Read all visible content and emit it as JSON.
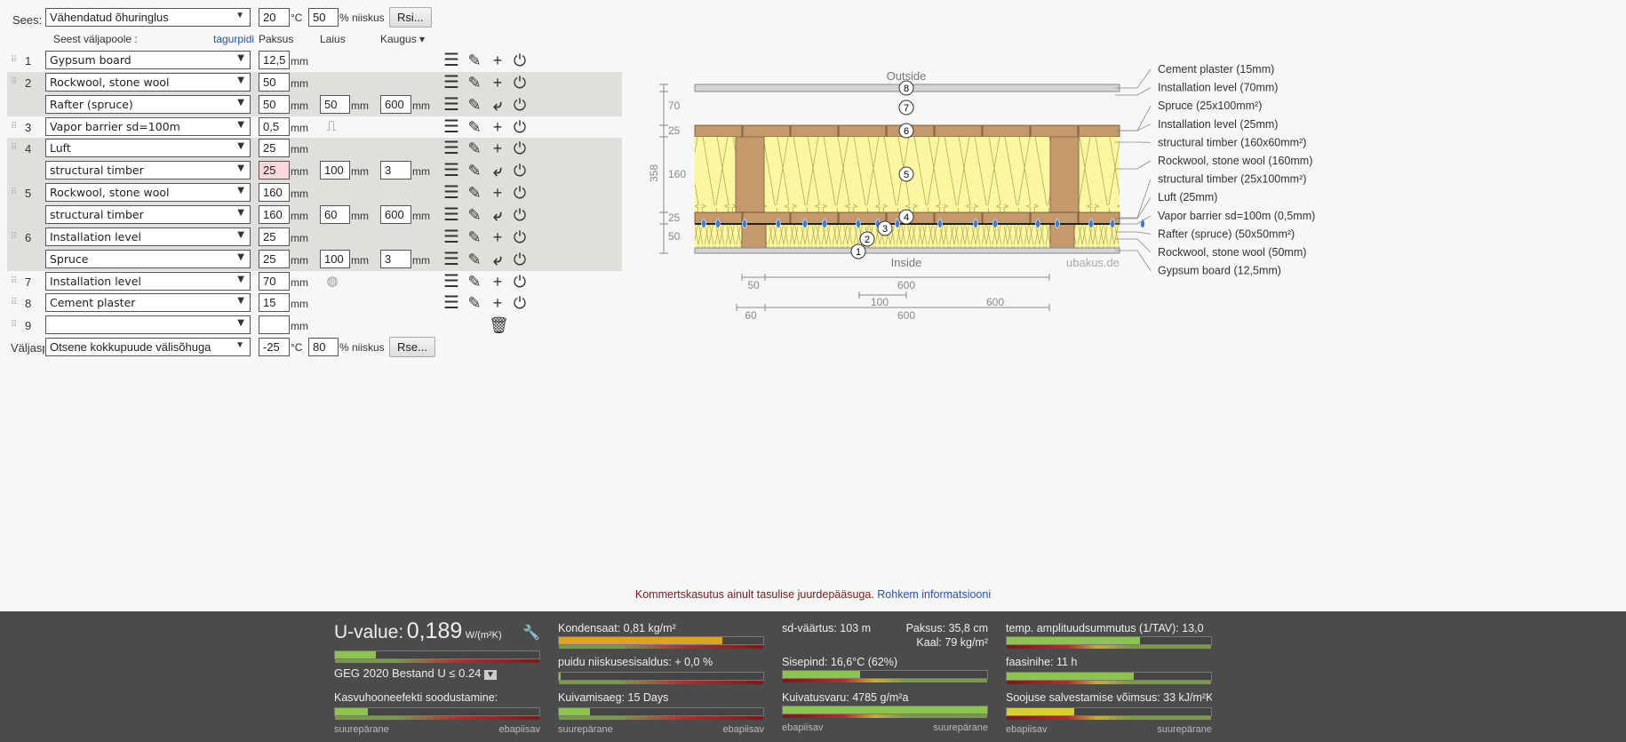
{
  "inside": {
    "label": "Sees:",
    "climate": "Vähendatud õhuringlus",
    "temp": "20",
    "temp_unit": "°C",
    "humidity": "50",
    "humidity_unit": "% niiskus",
    "rsi_button": "Rsi..."
  },
  "columns": {
    "order": "Seest väljapoole :",
    "reverse": "tagurpidi",
    "thickness": "Paksus",
    "width": "Laius",
    "distance": "Kaugus ▾"
  },
  "unit": "mm",
  "layers": [
    {
      "num": "1",
      "material": "Gypsum board",
      "thickness": "12,5",
      "shaded": false
    },
    {
      "num": "2",
      "material": "Rockwool, stone wool",
      "thickness": "50",
      "shaded": true
    },
    {
      "num": "",
      "material": "Rafter (spruce)",
      "thickness": "50",
      "width": "50",
      "distance": "600",
      "shaded": true,
      "sub": true
    },
    {
      "num": "3",
      "material": "Vapor barrier sd=100m",
      "thickness": "0,5",
      "shaded": false,
      "barrier": true
    },
    {
      "num": "4",
      "material": "Luft",
      "thickness": "25",
      "shaded": true
    },
    {
      "num": "",
      "material": "structural timber",
      "thickness": "25",
      "width": "100",
      "distance": "3",
      "shaded": true,
      "sub": true,
      "warn": true
    },
    {
      "num": "5",
      "material": "Rockwool, stone wool",
      "thickness": "160",
      "shaded": true
    },
    {
      "num": "",
      "material": "structural timber",
      "thickness": "160",
      "width": "60",
      "distance": "600",
      "shaded": true,
      "sub": true
    },
    {
      "num": "6",
      "material": "Installation level",
      "thickness": "25",
      "shaded": true
    },
    {
      "num": "",
      "material": "Spruce",
      "thickness": "25",
      "width": "100",
      "distance": "3",
      "shaded": true,
      "sub": true
    },
    {
      "num": "7",
      "material": "Installation level",
      "thickness": "70",
      "shaded": false,
      "addwood": true
    },
    {
      "num": "8",
      "material": "Cement plaster",
      "thickness": "15",
      "shaded": false
    },
    {
      "num": "9",
      "material": "",
      "thickness": "",
      "shaded": false,
      "empty": true
    }
  ],
  "outside": {
    "label": "Väljaspool",
    "climate": "Otsene kokkupuude välisõhuga",
    "temp": "-25",
    "temp_unit": "°C",
    "humidity": "80",
    "humidity_unit": "% niiskus",
    "rse_button": "Rse..."
  },
  "diagram": {
    "outside": "Outside",
    "inside": "Inside",
    "watermark": "ubakus.de",
    "dims_left": [
      "70",
      "25",
      "160",
      "25",
      "50"
    ],
    "total": "358",
    "dims_bottom": [
      "50",
      "600",
      "100",
      "600",
      "60",
      "600"
    ],
    "labels": [
      "Cement plaster (15mm)",
      "Installation level (70mm)",
      "Spruce (25x100mm²)",
      "Installation level (25mm)",
      "structural timber (160x60mm²)",
      "Rockwool, stone wool (160mm)",
      "structural timber (25x100mm²)",
      "Luft (25mm)",
      "Vapor barrier sd=100m (0,5mm)",
      "Rafter (spruce) (50x50mm²)",
      "Rockwool, stone wool (50mm)",
      "Gypsum board (12,5mm)"
    ]
  },
  "notice": {
    "text": "Kommertskasutus ainult tasulise juurdepääsuga.",
    "link": "Rohkem informatsiooni"
  },
  "results": {
    "uvalue_label": "U-value:",
    "uvalue": "0,189",
    "uvalue_unit": "W/(m²K)",
    "uvalue_fill": 0.2,
    "standard": "GEG 2020 Bestand U ≤ 0.24",
    "greenhouse": "Kasvuhooneefekti soodustamine:",
    "greenhouse_fill": 0.16,
    "condensate": "Kondensaat: 0,81 kg/m²",
    "condensate_fill": 0.8,
    "wood_moisture": "puidu niiskusesisaldus: + 0,0 %",
    "wood_moisture_fill": 0.01,
    "drying_time": "Kuivamisaeg: 15 Days",
    "drying_time_fill": 0.15,
    "sd": "sd-väärtus: 103 m",
    "thickness": "Paksus: 35,8 cm",
    "weight": "Kaal: 79 kg/m²",
    "surface": "Sisepind: 16,6°C (62%)",
    "surface_fill": 0.38,
    "drying_reserve": "Kuivatusvaru: 4785 g/m²a",
    "drying_reserve_fill": 1.0,
    "tav": "temp. amplituudsummutus (1/TAV): 13,0",
    "tav_fill": 0.65,
    "phase": "faasinihe: 11 h",
    "phase_fill": 0.62,
    "storage": "Soojuse salvestamise võimsus: 33 kJ/m²K",
    "storage_fill": 0.33,
    "good": "suurepärane",
    "bad": "ebapiisav"
  },
  "colors": {
    "green": "#8dc44f",
    "orange": "#e0a020",
    "yellow": "#d8d030",
    "link": "#2a4fb0",
    "wood": "#c49a6c",
    "insulation": "#fbf7a0"
  }
}
